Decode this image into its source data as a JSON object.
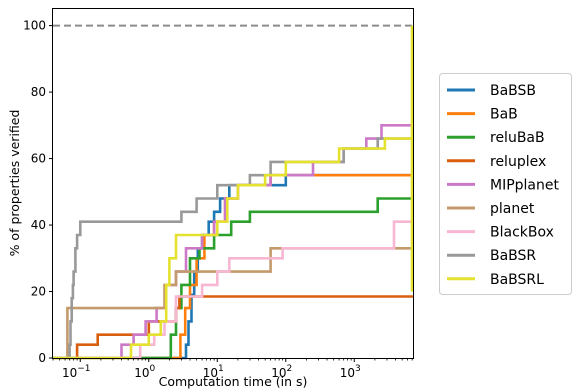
{
  "chart_data": {
    "type": "line",
    "xlabel": "Computation time (in s)",
    "ylabel": "% of properties verified",
    "xscale": "log",
    "xlim": [
      0.04,
      7200
    ],
    "ylim": [
      0,
      105
    ],
    "xticks": [
      {
        "value": 0.1,
        "base": "10",
        "exp": "−1"
      },
      {
        "value": 1,
        "base": "10",
        "exp": "0"
      },
      {
        "value": 10,
        "base": "10",
        "exp": "1"
      },
      {
        "value": 100,
        "base": "10",
        "exp": "2"
      },
      {
        "value": 1000,
        "base": "10",
        "exp": "3"
      }
    ],
    "yticks": [
      "0",
      "20",
      "40",
      "60",
      "80",
      "100"
    ],
    "reference_line": {
      "y": 100,
      "style": "dashed",
      "color": "#8c8c8c"
    },
    "legend_position": "right",
    "series": [
      {
        "name": "BaBSB",
        "color": "#1f77b4",
        "points": [
          [
            0.04,
            0
          ],
          [
            3.2,
            0
          ],
          [
            3.5,
            4
          ],
          [
            3.8,
            11
          ],
          [
            4.2,
            19
          ],
          [
            4.6,
            26
          ],
          [
            5.2,
            33
          ],
          [
            6,
            37
          ],
          [
            7.5,
            41
          ],
          [
            9,
            44
          ],
          [
            11,
            48
          ],
          [
            15,
            52
          ],
          [
            40,
            52
          ],
          [
            100,
            55
          ],
          [
            300,
            55
          ],
          [
            7200,
            55
          ]
        ]
      },
      {
        "name": "BaB",
        "color": "#ff7f0e",
        "points": [
          [
            0.04,
            0
          ],
          [
            2.6,
            0
          ],
          [
            2.9,
            7
          ],
          [
            3.4,
            15
          ],
          [
            4,
            22
          ],
          [
            5,
            30
          ],
          [
            6.5,
            37
          ],
          [
            9,
            41
          ],
          [
            13,
            48
          ],
          [
            20,
            52
          ],
          [
            60,
            55
          ],
          [
            7200,
            55
          ]
        ]
      },
      {
        "name": "reluBaB",
        "color": "#2ca02c",
        "points": [
          [
            0.04,
            0
          ],
          [
            1.8,
            0
          ],
          [
            2.1,
            7
          ],
          [
            2.5,
            15
          ],
          [
            3,
            22
          ],
          [
            4,
            30
          ],
          [
            5.5,
            33
          ],
          [
            9,
            37
          ],
          [
            16,
            41
          ],
          [
            30,
            44
          ],
          [
            1500,
            44
          ],
          [
            2200,
            48
          ],
          [
            7200,
            48
          ]
        ]
      },
      {
        "name": "reluplex",
        "color": "#d95f0e",
        "points": [
          [
            0.04,
            0
          ],
          [
            0.09,
            0
          ],
          [
            0.09,
            4
          ],
          [
            0.17,
            4
          ],
          [
            0.18,
            7
          ],
          [
            0.9,
            7
          ],
          [
            1,
            11
          ],
          [
            2.3,
            11
          ],
          [
            2.5,
            15
          ],
          [
            2.8,
            18.5
          ],
          [
            7200,
            18.5
          ]
        ]
      },
      {
        "name": "MIPplanet",
        "color": "#cc79c7",
        "points": [
          [
            0.04,
            0
          ],
          [
            0.35,
            0
          ],
          [
            0.4,
            4
          ],
          [
            0.6,
            7
          ],
          [
            0.9,
            11
          ],
          [
            1.3,
            15
          ],
          [
            1.8,
            22
          ],
          [
            2.5,
            26
          ],
          [
            3.5,
            33
          ],
          [
            6,
            37
          ],
          [
            9,
            41
          ],
          [
            13,
            48
          ],
          [
            20,
            52
          ],
          [
            60,
            55
          ],
          [
            250,
            59
          ],
          [
            700,
            63
          ],
          [
            1500,
            66
          ],
          [
            2500,
            70
          ],
          [
            7200,
            70
          ]
        ]
      },
      {
        "name": "planet",
        "color": "#c49a6c",
        "points": [
          [
            0.04,
            0
          ],
          [
            0.06,
            0
          ],
          [
            0.065,
            15
          ],
          [
            1.5,
            15
          ],
          [
            1.7,
            22
          ],
          [
            2.5,
            26
          ],
          [
            50,
            26
          ],
          [
            60,
            33
          ],
          [
            7200,
            33
          ]
        ]
      },
      {
        "name": "BlackBox",
        "color": "#f7b6d2",
        "points": [
          [
            0.04,
            0
          ],
          [
            0.7,
            0
          ],
          [
            0.75,
            4
          ],
          [
            1.2,
            7
          ],
          [
            1.7,
            11
          ],
          [
            2.5,
            18.5
          ],
          [
            5,
            18.5
          ],
          [
            6,
            22
          ],
          [
            10,
            26
          ],
          [
            15,
            30
          ],
          [
            80,
            30
          ],
          [
            90,
            33
          ],
          [
            3500,
            33
          ],
          [
            3800,
            41
          ],
          [
            7200,
            41
          ]
        ]
      },
      {
        "name": "BaBSR",
        "color": "#999999",
        "points": [
          [
            0.04,
            0
          ],
          [
            0.065,
            0
          ],
          [
            0.07,
            4
          ],
          [
            0.072,
            11
          ],
          [
            0.075,
            18
          ],
          [
            0.078,
            22
          ],
          [
            0.08,
            26
          ],
          [
            0.085,
            33
          ],
          [
            0.09,
            37
          ],
          [
            0.1,
            41
          ],
          [
            0.6,
            41
          ],
          [
            1,
            41
          ],
          [
            2,
            41
          ],
          [
            3,
            44
          ],
          [
            5,
            48
          ],
          [
            10,
            52
          ],
          [
            30,
            55
          ],
          [
            60,
            59
          ],
          [
            500,
            59
          ],
          [
            700,
            63
          ],
          [
            2000,
            63
          ],
          [
            2200,
            66
          ],
          [
            7200,
            66
          ]
        ]
      },
      {
        "name": "BaBSRL",
        "color": "#e4e12f",
        "points": [
          [
            0.04,
            0
          ],
          [
            0.5,
            0
          ],
          [
            0.55,
            4
          ],
          [
            1,
            7
          ],
          [
            1.5,
            11
          ],
          [
            1.8,
            22
          ],
          [
            2,
            30
          ],
          [
            2.5,
            37
          ],
          [
            8,
            37
          ],
          [
            10,
            41
          ],
          [
            14,
            48
          ],
          [
            20,
            52
          ],
          [
            50,
            55
          ],
          [
            100,
            59
          ],
          [
            500,
            59
          ],
          [
            600,
            63
          ],
          [
            2500,
            63
          ],
          [
            2800,
            66
          ],
          [
            7200,
            66
          ]
        ]
      }
    ]
  }
}
